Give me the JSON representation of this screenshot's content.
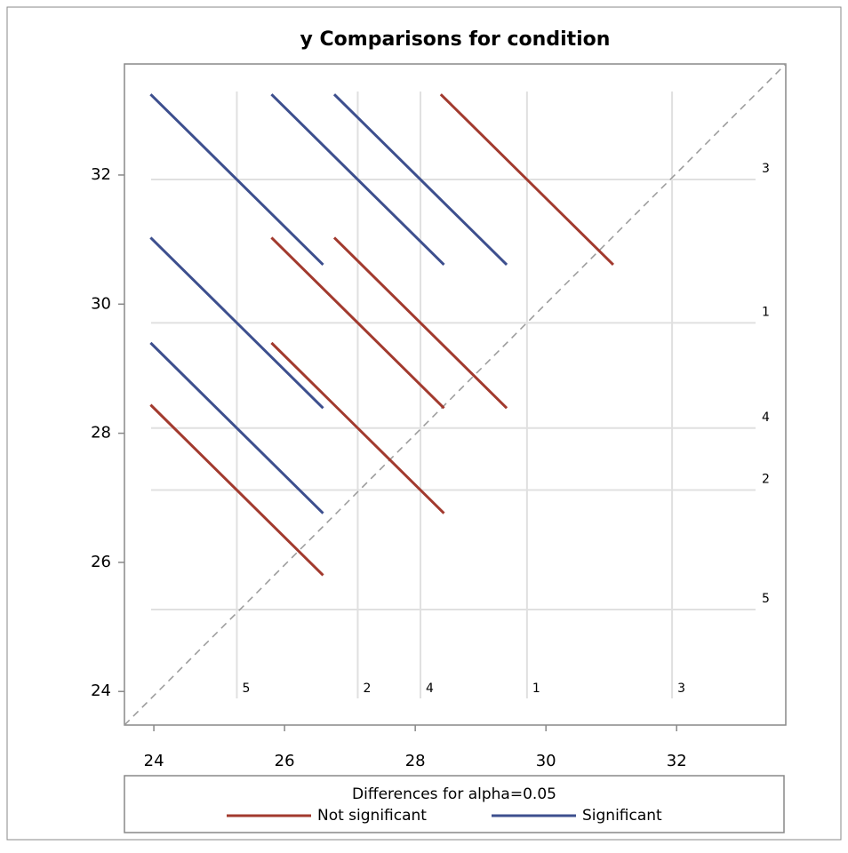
{
  "chart_data": {
    "type": "diffogram",
    "title": "y Comparisons for condition",
    "xlim": [
      23.55,
      33.67
    ],
    "ylim": [
      23.48,
      33.72
    ],
    "xticks": [
      24,
      26,
      28,
      30,
      32
    ],
    "yticks": [
      24,
      26,
      28,
      30,
      32
    ],
    "groups": [
      {
        "label": "1",
        "mean": 29.71
      },
      {
        "label": "2",
        "mean": 27.12
      },
      {
        "label": "3",
        "mean": 31.93
      },
      {
        "label": "4",
        "mean": 28.08
      },
      {
        "label": "5",
        "mean": 25.27
      }
    ],
    "legend_title": "Differences for alpha=0.05",
    "series": [
      {
        "name": "Not significant",
        "color": "#a23a2e",
        "segments": [
          {
            "x": [
              28.39,
              31.03
            ],
            "y": [
              33.25,
              30.61
            ]
          },
          {
            "x": [
              25.8,
              28.44
            ],
            "y": [
              31.03,
              28.39
            ]
          },
          {
            "x": [
              26.76,
              29.4
            ],
            "y": [
              31.03,
              28.39
            ]
          },
          {
            "x": [
              25.8,
              28.44
            ],
            "y": [
              29.4,
              26.76
            ]
          },
          {
            "x": [
              23.95,
              26.59
            ],
            "y": [
              28.44,
              25.8
            ]
          }
        ]
      },
      {
        "name": "Significant",
        "color": "#3d4f8e",
        "segments": [
          {
            "x": [
              23.95,
              26.59
            ],
            "y": [
              33.25,
              30.61
            ]
          },
          {
            "x": [
              25.8,
              28.44
            ],
            "y": [
              33.25,
              30.61
            ]
          },
          {
            "x": [
              26.76,
              29.4
            ],
            "y": [
              33.25,
              30.61
            ]
          },
          {
            "x": [
              23.95,
              26.59
            ],
            "y": [
              31.03,
              28.39
            ]
          },
          {
            "x": [
              23.95,
              26.59
            ],
            "y": [
              29.4,
              26.76
            ]
          }
        ]
      }
    ]
  }
}
